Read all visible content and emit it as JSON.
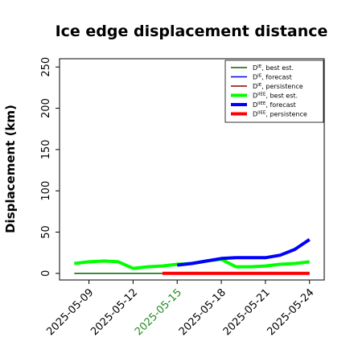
{
  "chart_data": {
    "type": "line",
    "title": "Ice edge displacement distance",
    "xlabel": "",
    "ylabel": "Displacement (km)",
    "ylim": [
      -8,
      260
    ],
    "xlim": [
      "2025-05-07",
      "2025-05-25"
    ],
    "yticks": [
      0,
      50,
      100,
      150,
      200,
      250
    ],
    "xticks": [
      {
        "date": "2025-05-09",
        "label": "2025-05-09",
        "color": "#000000"
      },
      {
        "date": "2025-05-12",
        "label": "2025-05-12",
        "color": "#000000"
      },
      {
        "date": "2025-05-15",
        "label": "2025-05-15",
        "color": "#228b22"
      },
      {
        "date": "2025-05-18",
        "label": "2025-05-18",
        "color": "#000000"
      },
      {
        "date": "2025-05-21",
        "label": "2025-05-21",
        "color": "#000000"
      },
      {
        "date": "2025-05-24",
        "label": "2025-05-24",
        "color": "#000000"
      }
    ],
    "grid": false,
    "legend_position": "top-right",
    "series": [
      {
        "name": "D^IE, best est.",
        "base": "D",
        "sup": "IE",
        "suffix": ", best est.",
        "color": "#006400",
        "width": 1.5,
        "x": [
          "2025-05-08",
          "2025-05-09",
          "2025-05-10",
          "2025-05-11",
          "2025-05-12",
          "2025-05-13",
          "2025-05-14",
          "2025-05-15"
        ],
        "y": [
          0,
          0,
          0,
          0,
          0,
          0,
          0,
          0
        ]
      },
      {
        "name": "D^IE, forecast",
        "base": "D",
        "sup": "IE",
        "suffix": ", forecast",
        "color": "#0000cd",
        "width": 1.5,
        "x": [
          "2025-05-15",
          "2025-05-16",
          "2025-05-17",
          "2025-05-18",
          "2025-05-19",
          "2025-05-20",
          "2025-05-21",
          "2025-05-22",
          "2025-05-23",
          "2025-05-24"
        ],
        "y": [
          0,
          0,
          0,
          0,
          0,
          0,
          0,
          0,
          0,
          0
        ]
      },
      {
        "name": "D^IE, persistence",
        "base": "D",
        "sup": "IE",
        "suffix": ", persistence",
        "color": "#8b0000",
        "width": 1.5,
        "x": [
          "2025-05-14",
          "2025-05-24"
        ],
        "y": [
          0,
          0
        ]
      },
      {
        "name": "D^IIEE, best est.",
        "base": "D",
        "sup": "IIEE",
        "suffix": ", best est.",
        "color": "#00ff00",
        "width": 4,
        "x": [
          "2025-05-08",
          "2025-05-09",
          "2025-05-10",
          "2025-05-11",
          "2025-05-12",
          "2025-05-13",
          "2025-05-14",
          "2025-05-15",
          "2025-05-16",
          "2025-05-17",
          "2025-05-18",
          "2025-05-19",
          "2025-05-20",
          "2025-05-21",
          "2025-05-22",
          "2025-05-23",
          "2025-05-24"
        ],
        "y": [
          12,
          14,
          15,
          14,
          6,
          8,
          9,
          11,
          12,
          15,
          17,
          8,
          8,
          9,
          11,
          12,
          14
        ]
      },
      {
        "name": "D^IIEE, forecast",
        "base": "D",
        "sup": "IIEE",
        "suffix": ", forecast",
        "color": "#0000ff",
        "width": 4,
        "x": [
          "2025-05-15",
          "2025-05-16",
          "2025-05-17",
          "2025-05-18",
          "2025-05-19",
          "2025-05-20",
          "2025-05-21",
          "2025-05-22",
          "2025-05-23",
          "2025-05-24"
        ],
        "y": [
          10,
          12,
          15,
          18,
          19,
          19,
          19,
          22,
          29,
          41
        ]
      },
      {
        "name": "D^IIEE, persistence",
        "base": "D",
        "sup": "IIEE",
        "suffix": ", persistence",
        "color": "#ff0000",
        "width": 4,
        "x": [
          "2025-05-14",
          "2025-05-24"
        ],
        "y": [
          0,
          0
        ]
      }
    ]
  }
}
